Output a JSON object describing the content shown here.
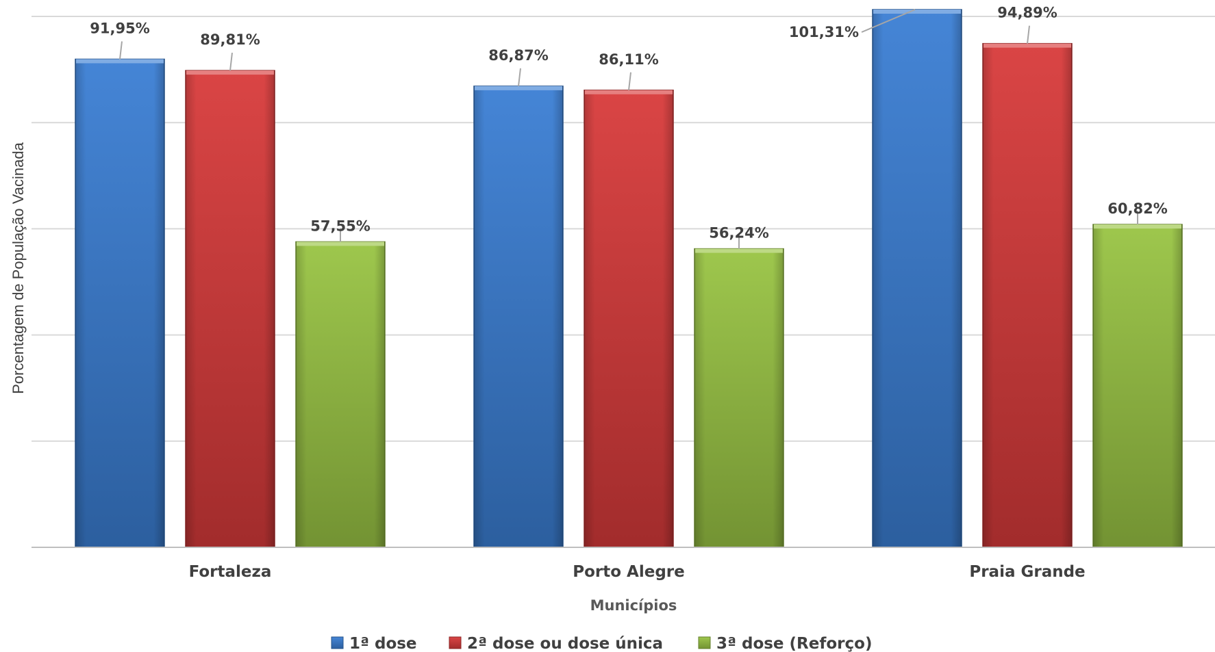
{
  "chart_data": {
    "type": "bar",
    "categories": [
      "Fortaleza",
      "Porto Alegre",
      "Praia Grande"
    ],
    "series": [
      {
        "name": "1ª dose",
        "values": [
          91.95,
          86.87,
          101.31
        ],
        "labels": [
          "91,95%",
          "86,87%",
          "101,31%"
        ],
        "color": "#3b7fd4"
      },
      {
        "name": "2ª dose ou dose única",
        "values": [
          89.81,
          86.11,
          94.89
        ],
        "labels": [
          "89,81%",
          "86,11%",
          "94,89%"
        ],
        "color": "#d83b3b"
      },
      {
        "name": "3ª dose (Reforço)",
        "values": [
          57.55,
          56.24,
          60.82
        ],
        "labels": [
          "57,55%",
          "56,24%",
          "60,82%"
        ],
        "color": "#99c444"
      }
    ],
    "xlabel": "Municípios",
    "ylabel": "Porcentagem de População Vacinada",
    "ylim": [
      0,
      100
    ],
    "grid": true,
    "legend_position": "bottom"
  }
}
